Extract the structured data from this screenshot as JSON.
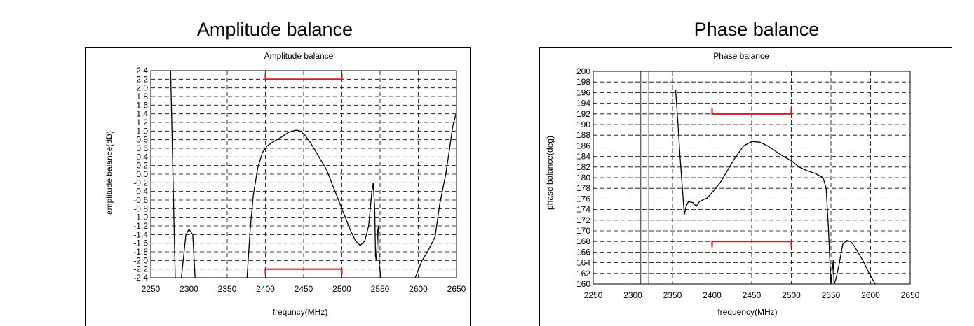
{
  "page": {
    "left_title": "Amplitude balance",
    "right_title": "Phase balance"
  },
  "chart_data": [
    {
      "type": "line",
      "title": "Amplitude balance",
      "xlabel": "frequncy(MHz)",
      "ylabel": "amplitude balance(dB)",
      "xlim": [
        2250,
        2650
      ],
      "ylim": [
        -2.4,
        2.4
      ],
      "x_ticks": [
        2250,
        2300,
        2350,
        2400,
        2450,
        2500,
        2550,
        2600,
        2650
      ],
      "y_ticks": [
        "2.4",
        "2.2",
        "2.0",
        "1.8",
        "1.6",
        "1.4",
        "1.2",
        "1.0",
        "0.8",
        "0.6",
        "0.4",
        "0.2",
        "0.0",
        "-0.2",
        "-0.4",
        "-0.6",
        "-0.8",
        "-1.0",
        "-1.2",
        "-1.4",
        "-1.6",
        "-1.8",
        "-2.0",
        "-2.2",
        "-2.4"
      ],
      "grid": true,
      "spec_limits": [
        {
          "x": [
            2400,
            2500
          ],
          "y": 2.2,
          "color": "#e8141b"
        },
        {
          "x": [
            2400,
            2500
          ],
          "y": -2.2,
          "color": "#e8141b"
        }
      ],
      "series": [
        {
          "color": "#000000",
          "points": [
            [
              2276,
              2.4
            ],
            [
              2282,
              -2.4
            ]
          ]
        },
        {
          "color": "#000000",
          "points": [
            [
              2290,
              -2.4
            ],
            [
              2293,
              -1.9
            ],
            [
              2296,
              -1.4
            ],
            [
              2300,
              -1.28
            ],
            [
              2305,
              -1.4
            ],
            [
              2308,
              -2.4
            ]
          ]
        },
        {
          "color": "#000000",
          "points": [
            [
              2376,
              -2.4
            ],
            [
              2380,
              -1.3
            ],
            [
              2384,
              -0.5
            ],
            [
              2390,
              0.15
            ],
            [
              2396,
              0.5
            ],
            [
              2402,
              0.65
            ],
            [
              2410,
              0.75
            ],
            [
              2420,
              0.85
            ],
            [
              2430,
              0.97
            ],
            [
              2440,
              1.02
            ],
            [
              2446,
              1.0
            ],
            [
              2452,
              0.9
            ],
            [
              2460,
              0.7
            ],
            [
              2470,
              0.4
            ],
            [
              2480,
              0.1
            ],
            [
              2490,
              -0.35
            ],
            [
              2500,
              -0.8
            ],
            [
              2510,
              -1.25
            ],
            [
              2518,
              -1.55
            ],
            [
              2524,
              -1.65
            ],
            [
              2530,
              -1.55
            ],
            [
              2535,
              -1.2
            ],
            [
              2539,
              -0.45
            ],
            [
              2541,
              -0.2
            ],
            [
              2543,
              -0.8
            ],
            [
              2544,
              -1.9
            ],
            [
              2545,
              -2.0
            ],
            [
              2547,
              -1.3
            ],
            [
              2548,
              -1.2
            ],
            [
              2549,
              -2.1
            ],
            [
              2551,
              -2.4
            ]
          ]
        },
        {
          "color": "#000000",
          "points": [
            [
              2596,
              -2.4
            ],
            [
              2605,
              -2.0
            ],
            [
              2612,
              -1.8
            ],
            [
              2615,
              -1.7
            ],
            [
              2622,
              -1.45
            ],
            [
              2628,
              -0.7
            ],
            [
              2636,
              0.0
            ],
            [
              2641,
              0.6
            ],
            [
              2645,
              1.1
            ],
            [
              2650,
              1.45
            ]
          ]
        }
      ]
    },
    {
      "type": "line",
      "title": "Phase balance",
      "xlabel": "frequency(MHz)",
      "ylabel": "phase balance(deg)",
      "xlim": [
        2250,
        2650
      ],
      "ylim": [
        160,
        200
      ],
      "x_ticks": [
        2250,
        2300,
        2350,
        2400,
        2450,
        2500,
        2550,
        2600,
        2650
      ],
      "y_ticks": [
        "200",
        "198",
        "196",
        "194",
        "192",
        "190",
        "188",
        "186",
        "184",
        "182",
        "180",
        "178",
        "176",
        "174",
        "172",
        "170",
        "168",
        "166",
        "164",
        "162",
        "160"
      ],
      "grid": true,
      "extra_vlines": [
        2285,
        2310,
        2320
      ],
      "spec_limits": [
        {
          "x": [
            2400,
            2500
          ],
          "y": 192,
          "color": "#e8141b"
        },
        {
          "x": [
            2400,
            2500
          ],
          "y": 168,
          "color": "#e8141b"
        }
      ],
      "series": [
        {
          "color": "#000000",
          "points": [
            [
              2354,
              196.5
            ],
            [
              2357,
              190
            ],
            [
              2360,
              183
            ],
            [
              2363,
              177
            ],
            [
              2365,
              173
            ],
            [
              2367,
              174.5
            ],
            [
              2370,
              175.5
            ],
            [
              2376,
              175.3
            ],
            [
              2380,
              174.6
            ],
            [
              2384,
              175.5
            ],
            [
              2388,
              175.8
            ],
            [
              2394,
              176.2
            ],
            [
              2400,
              177.2
            ],
            [
              2410,
              179
            ],
            [
              2420,
              181.5
            ],
            [
              2430,
              184
            ],
            [
              2440,
              186
            ],
            [
              2450,
              186.8
            ],
            [
              2460,
              186.7
            ],
            [
              2470,
              186
            ],
            [
              2480,
              185
            ],
            [
              2490,
              184
            ],
            [
              2500,
              183.2
            ],
            [
              2510,
              182
            ],
            [
              2520,
              181.3
            ],
            [
              2530,
              180.8
            ],
            [
              2540,
              180
            ],
            [
              2544,
              178
            ],
            [
              2547,
              170
            ],
            [
              2549,
              163
            ],
            [
              2550,
              160
            ],
            [
              2553,
              164.5
            ],
            [
              2554,
              160
            ],
            [
              2556,
              160.8
            ],
            [
              2560,
              163.5
            ],
            [
              2565,
              167.5
            ],
            [
              2570,
              168.2
            ],
            [
              2575,
              168
            ],
            [
              2580,
              167
            ],
            [
              2590,
              164.5
            ],
            [
              2600,
              161.5
            ],
            [
              2606,
              160
            ]
          ]
        }
      ]
    }
  ]
}
